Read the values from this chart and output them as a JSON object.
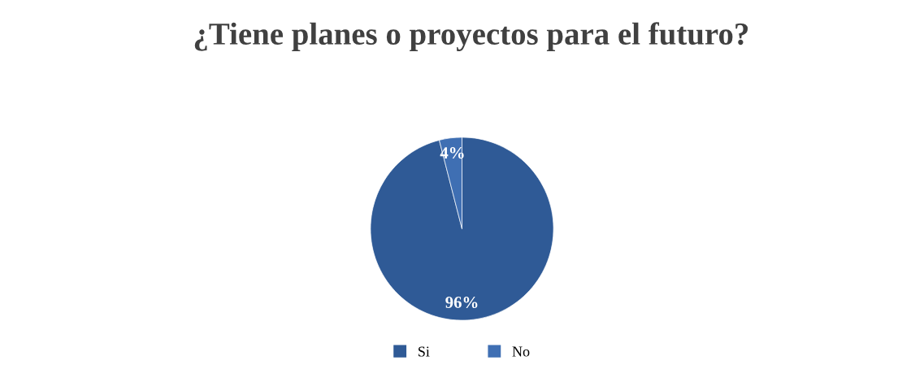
{
  "chart_data": {
    "type": "pie",
    "title": "¿Tiene planes o proyectos para el futuro?",
    "categories": [
      "Si",
      "No"
    ],
    "values": [
      96,
      4
    ],
    "colors": [
      "#2f5a96",
      "#3f6fb3"
    ],
    "value_labels": [
      "96%",
      "4%"
    ],
    "legend": "bottom"
  }
}
